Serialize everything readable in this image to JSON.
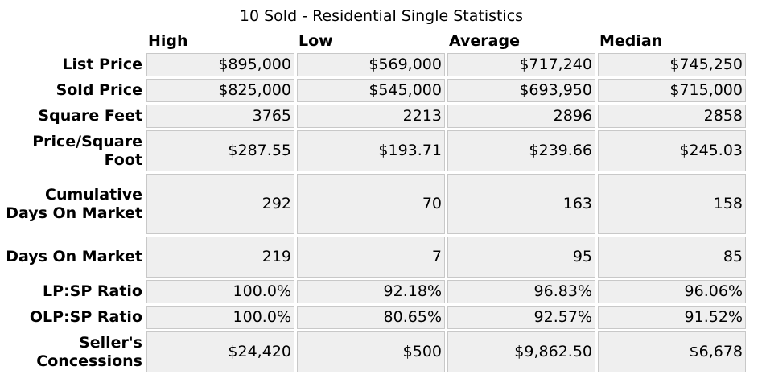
{
  "title": "10 Sold - Residential Single Statistics",
  "columns": [
    "High",
    "Low",
    "Average",
    "Median"
  ],
  "rows": [
    {
      "label": "List Price",
      "values": [
        "$895,000",
        "$569,000",
        "$717,240",
        "$745,250"
      ]
    },
    {
      "label": "Sold Price",
      "values": [
        "$825,000",
        "$545,000",
        "$693,950",
        "$715,000"
      ]
    },
    {
      "label": "Square Feet",
      "values": [
        "3765",
        "2213",
        "2896",
        "2858"
      ]
    },
    {
      "label": "Price/Square Foot",
      "values": [
        "$287.55",
        "$193.71",
        "$239.66",
        "$245.03"
      ]
    },
    {
      "label": "Cumulative Days On Market",
      "values": [
        "292",
        "70",
        "163",
        "158"
      ]
    },
    {
      "label": "Days On Market",
      "values": [
        "219",
        "7",
        "95",
        "85"
      ]
    },
    {
      "label": "LP:SP Ratio",
      "values": [
        "100.0%",
        "92.18%",
        "96.83%",
        "96.06%"
      ]
    },
    {
      "label": "OLP:SP Ratio",
      "values": [
        "100.0%",
        "80.65%",
        "92.57%",
        "91.52%"
      ]
    },
    {
      "label": "Seller's Concessions",
      "values": [
        "$24,420",
        "$500",
        "$9,862.50",
        "$6,678"
      ]
    }
  ]
}
